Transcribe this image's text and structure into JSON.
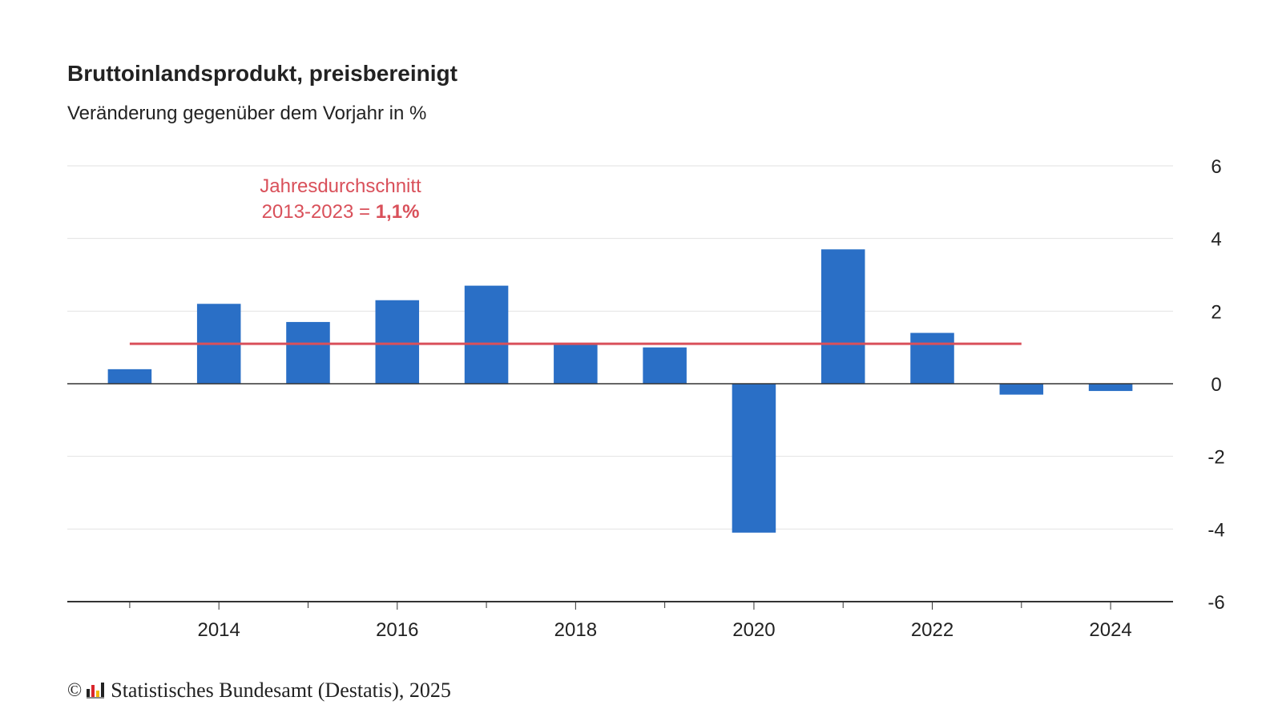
{
  "chart_data": {
    "type": "bar",
    "title": "Bruttoinlandsprodukt, preisbereinigt",
    "subtitle": "Veränderung gegenüber dem Vorjahr in %",
    "x": [
      2013,
      2014,
      2015,
      2016,
      2017,
      2018,
      2019,
      2020,
      2021,
      2022,
      2023,
      2024
    ],
    "values": [
      0.4,
      2.2,
      1.7,
      2.3,
      2.7,
      1.1,
      1.0,
      -4.1,
      3.7,
      1.4,
      -0.3,
      -0.2
    ],
    "xlim": [
      2012.3,
      2024.7
    ],
    "ylim": [
      -6,
      6
    ],
    "yticks": [
      6,
      4,
      2,
      0,
      -2,
      -4,
      -6
    ],
    "xticks": [
      2014,
      2016,
      2018,
      2020,
      2022,
      2024
    ],
    "grid": true,
    "reference_line": {
      "value": 1.1,
      "x_from": 2013,
      "x_to": 2023,
      "label_line1": "Jahresdurchschnitt",
      "label_line2_prefix": "2013-2023 = ",
      "label_line2_value": "1,1%",
      "color": "#d9505a"
    },
    "bar_color": "#2a6fc6"
  },
  "footer": {
    "copyright": "©",
    "text": "Statistisches Bundesamt (Destatis), 2025"
  },
  "icons": {
    "logo": "destatis-logo-icon"
  }
}
